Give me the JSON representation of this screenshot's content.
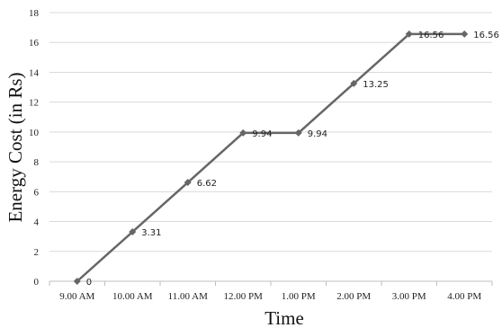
{
  "chart_data": {
    "type": "line",
    "title": "",
    "xlabel": "Time",
    "ylabel": "Energy Cost (in Rs)",
    "categories": [
      "9.00 AM",
      "10.00 AM",
      "11.00 AM",
      "12.00 PM",
      "1.00 PM",
      "2.00 PM",
      "3.00 PM",
      "4.00 PM"
    ],
    "series": [
      {
        "values": [
          0,
          3.31,
          6.62,
          9.94,
          9.94,
          13.25,
          16.56,
          16.56
        ],
        "labels": [
          "0",
          "3.31",
          "6.62",
          "9.94",
          "9.94",
          "13.25",
          "16.56",
          "16.56"
        ],
        "color": "#666666",
        "marker": "diamond"
      }
    ],
    "ylim": [
      0,
      18
    ],
    "yticks": [
      0,
      2,
      4,
      6,
      8,
      10,
      12,
      14,
      16,
      18
    ],
    "grid": true,
    "legend": "none"
  }
}
